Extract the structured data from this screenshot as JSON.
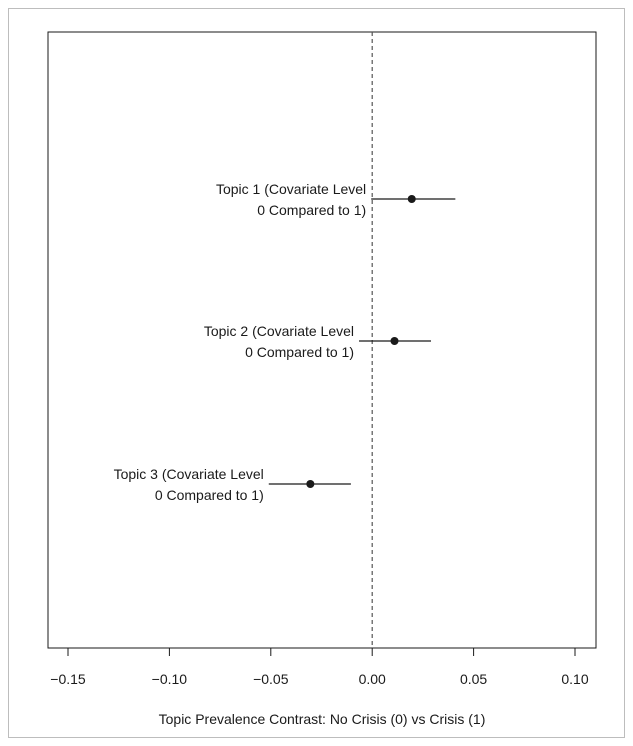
{
  "chart_data": {
    "type": "scatter",
    "subtype": "point-estimate with confidence intervals",
    "xlabel": "Topic Prevalence Contrast:  No Crisis (0) vs Crisis (1)",
    "ylabel": "",
    "title": "",
    "xlim": [
      -0.16,
      0.11
    ],
    "x_ticks": [
      -0.15,
      -0.1,
      -0.05,
      0.0,
      0.05,
      0.1
    ],
    "x_tick_labels": [
      "−0.15",
      "−0.10",
      "−0.05",
      "0.00",
      "0.05",
      "0.10"
    ],
    "reference_line": {
      "x": 0,
      "style": "dashed"
    },
    "points": [
      {
        "label_line1": "Topic 1 (Covariate Level",
        "label_line2": "0 Compared to 1)",
        "estimate": 0.0195,
        "ci_low": -0.0005,
        "ci_high": 0.041
      },
      {
        "label_line1": "Topic 2 (Covariate Level",
        "label_line2": "0 Compared to 1)",
        "estimate": 0.011,
        "ci_low": -0.0065,
        "ci_high": 0.029
      },
      {
        "label_line1": "Topic 3 (Covariate Level",
        "label_line2": "0 Compared to 1)",
        "estimate": -0.0305,
        "ci_low": -0.051,
        "ci_high": -0.0105
      }
    ],
    "grid": false
  }
}
